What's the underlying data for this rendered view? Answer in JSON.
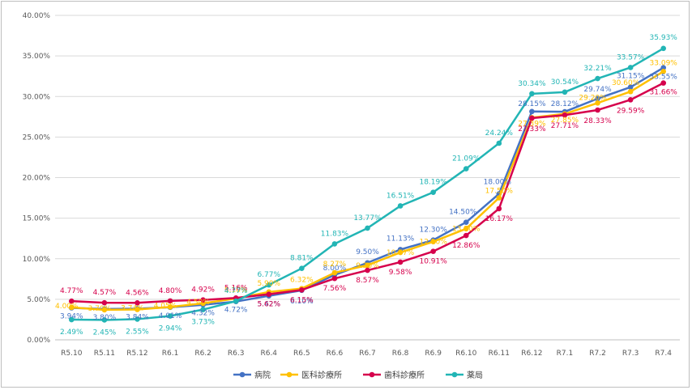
{
  "chart_data": {
    "type": "line",
    "title": "",
    "xlabel": "",
    "ylabel": "",
    "ylim": [
      0,
      40
    ],
    "yticks": [
      0,
      5,
      10,
      15,
      20,
      25,
      30,
      35,
      40
    ],
    "ytick_labels": [
      "0.00%",
      "5.00%",
      "10.00%",
      "15.00%",
      "20.00%",
      "25.00%",
      "30.00%",
      "35.00%",
      "40.00%"
    ],
    "grid": true,
    "legend_position": "bottom",
    "categories": [
      "R5.10",
      "R5.11",
      "R5.12",
      "R6.1",
      "R6.2",
      "R6.3",
      "R6.4",
      "R6.5",
      "R6.6",
      "R6.7",
      "R6.8",
      "R6.9",
      "R6.10",
      "R6.11",
      "R6.12",
      "R7.1",
      "R7.2",
      "R7.3",
      "R7.4"
    ],
    "series": [
      {
        "name": "病院",
        "color": "#4472c4",
        "values": [
          3.94,
          3.8,
          3.84,
          4.01,
          4.32,
          4.72,
          5.42,
          6.1,
          8.0,
          9.5,
          11.13,
          12.3,
          14.5,
          18.0,
          28.15,
          28.12,
          29.74,
          31.15,
          33.55
        ],
        "labels": [
          "3.94%",
          "3.80%",
          "3.84%",
          "4.01%",
          "4.32%",
          "4.72%",
          "5.42%",
          "6.10%",
          "8.00%",
          "9.50%",
          "11.13%",
          "12.30%",
          "14.50%",
          "18.00%",
          "28.15%",
          "28.12%",
          "29.74%",
          "31.15%",
          "33.55%"
        ]
      },
      {
        "name": "医科診療所",
        "color": "#ffc000",
        "values": [
          4.0,
          3.7,
          3.74,
          4.05,
          4.5,
          5.1,
          5.9,
          6.32,
          8.27,
          9.2,
          10.77,
          12.1,
          13.7,
          17.5,
          27.39,
          27.85,
          29.2,
          30.6,
          33.09
        ],
        "labels": [
          "4.00%",
          "3.70%",
          "3.74%",
          "4.05%",
          "4.50%",
          "5.10%",
          "5.90%",
          "6.32%",
          "8.27%",
          "9.20%",
          "10.77%",
          "12.10%",
          "13.70%",
          "17.50%",
          "27.39%",
          "27.85%",
          "29.20%",
          "30.60%",
          "33.09%"
        ]
      },
      {
        "name": "歯科診療所",
        "color": "#d6004c",
        "values": [
          4.77,
          4.57,
          4.56,
          4.8,
          4.92,
          5.16,
          5.62,
          6.15,
          7.56,
          8.57,
          9.58,
          10.91,
          12.86,
          16.17,
          27.33,
          27.71,
          28.33,
          29.59,
          31.66
        ],
        "labels": [
          "4.77%",
          "4.57%",
          "4.56%",
          "4.80%",
          "4.92%",
          "5.16%",
          "5.62%",
          "6.15%",
          "7.56%",
          "8.57%",
          "9.58%",
          "10.91%",
          "12.86%",
          "16.17%",
          "27.33%",
          "27.71%",
          "28.33%",
          "29.59%",
          "31.66%"
        ]
      },
      {
        "name": "薬局",
        "color": "#22b5b5",
        "values": [
          2.49,
          2.45,
          2.55,
          2.94,
          3.73,
          4.77,
          6.77,
          8.81,
          11.83,
          13.77,
          16.51,
          18.19,
          21.09,
          24.24,
          30.34,
          30.54,
          32.21,
          33.57,
          35.93
        ],
        "labels": [
          "2.49%",
          "2.45%",
          "2.55%",
          "2.94%",
          "3.73%",
          "4.77%",
          "6.77%",
          "8.81%",
          "11.83%",
          "13.77%",
          "16.51%",
          "18.19%",
          "21.09%",
          "24.24%",
          "30.34%",
          "30.54%",
          "32.21%",
          "33.57%",
          "35.93%"
        ]
      }
    ]
  }
}
